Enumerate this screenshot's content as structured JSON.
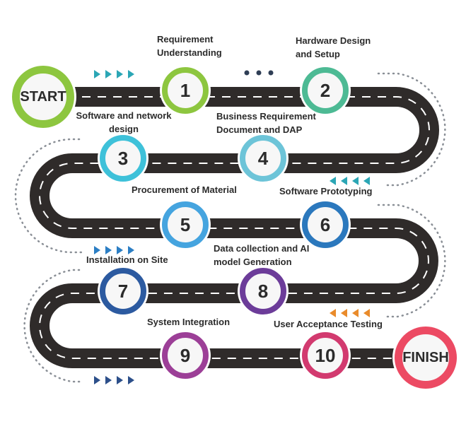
{
  "start": {
    "label": "START",
    "color": "#8dc63f"
  },
  "finish": {
    "label": "FINISH",
    "color": "#ec4a63"
  },
  "road": {
    "color": "#2f2b2a",
    "dash_color": "#ffffff"
  },
  "steps": [
    {
      "number": "1",
      "label_lines": [
        "Requirement",
        "Understanding"
      ],
      "color": "#8dc63f"
    },
    {
      "number": "2",
      "label_lines": [
        "Hardware Design",
        "and Setup"
      ],
      "color": "#4dba94"
    },
    {
      "number": "3",
      "label_lines": [
        "Software and network",
        "design"
      ],
      "color": "#3ec1d9"
    },
    {
      "number": "4",
      "label_lines": [
        "Business Requirement",
        "Document and DAP"
      ],
      "color": "#6dc4d8"
    },
    {
      "number": "5",
      "label_lines": [
        "Procurement of Material"
      ],
      "color": "#45a4df"
    },
    {
      "number": "6",
      "label_lines": [
        "Software Prototyping"
      ],
      "color": "#2b78bd"
    },
    {
      "number": "7",
      "label_lines": [
        "Installation on Site"
      ],
      "color": "#2c5aa0"
    },
    {
      "number": "8",
      "label_lines": [
        "Data collection and AI",
        "model Generation"
      ],
      "color": "#6c3c99"
    },
    {
      "number": "9",
      "label_lines": [
        "System Integration"
      ],
      "color": "#9c3f97"
    },
    {
      "number": "10",
      "label_lines": [
        "User Acceptance Testing"
      ],
      "color": "#d23a6f"
    }
  ],
  "arrow_colors": {
    "row1": "#2ba6b5",
    "row2": "#2ba6b5",
    "row3": "#2b7ec4",
    "row4": "#e98b2b",
    "row5": "#2c4f8a",
    "dots": "#2f3e55"
  }
}
